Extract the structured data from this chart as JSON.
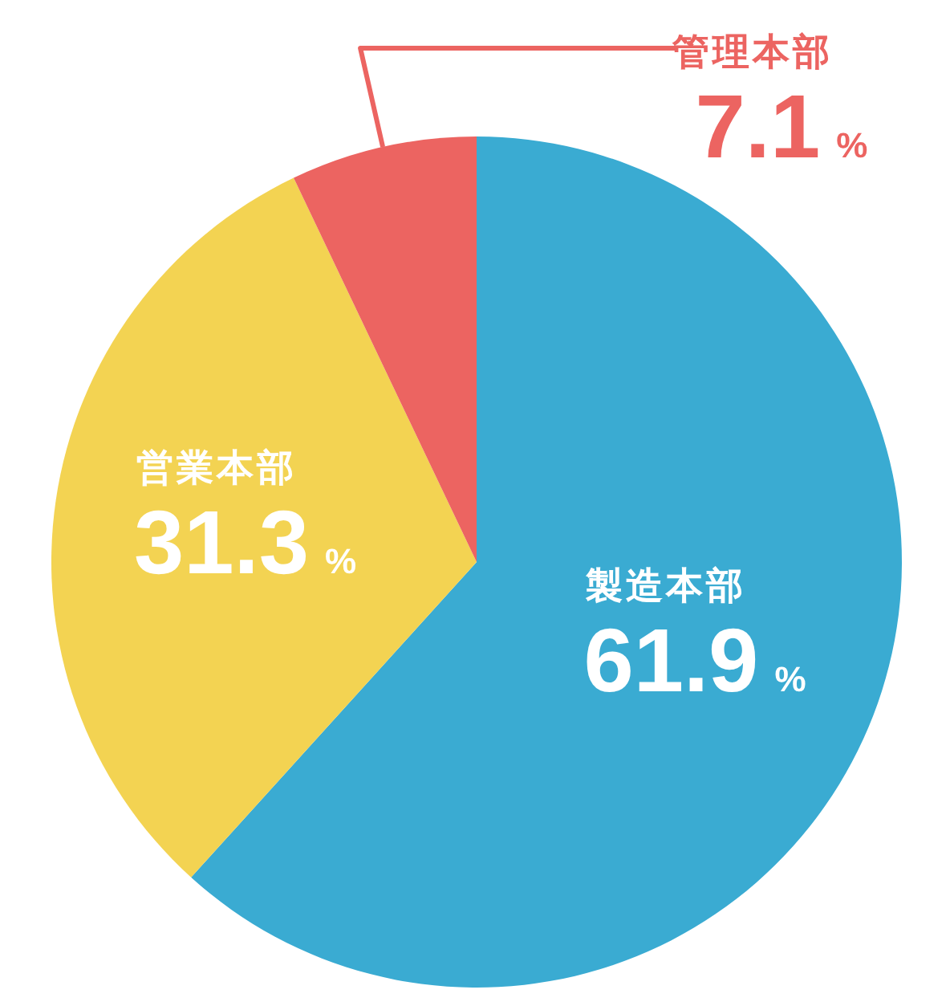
{
  "chart_data": {
    "type": "pie",
    "categories": [
      "製造本部",
      "営業本部",
      "管理本部"
    ],
    "values": [
      61.9,
      31.3,
      7.1
    ],
    "colors": [
      "#3aabd2",
      "#f3d352",
      "#ec6461"
    ],
    "value_labels": [
      "61.9 %",
      "31.3 %",
      "7.1 %"
    ]
  }
}
